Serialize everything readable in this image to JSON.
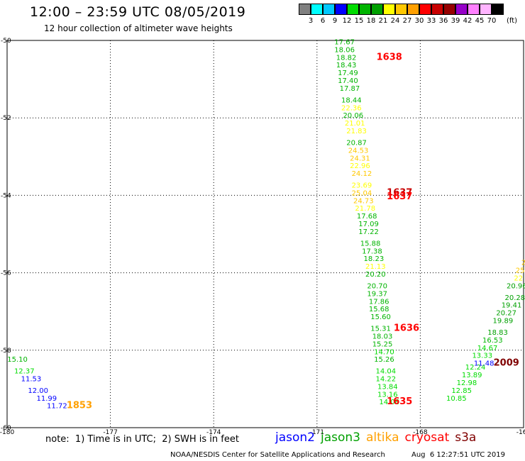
{
  "header": {
    "title": "12:00 – 23:59 UTC 08/05/2019",
    "subtitle": "12 hour collection of altimeter wave heights",
    "unit": "(ft)"
  },
  "colorbar": {
    "colors": [
      "#808080",
      "#00ffff",
      "#00c8ff",
      "#0000ff",
      "#00dc00",
      "#00b400",
      "#00a000",
      "#ffff00",
      "#ffc800",
      "#ffa000",
      "#ff0000",
      "#c80000",
      "#960000",
      "#9600c8",
      "#ff80ff",
      "#ffb4ff",
      "#000000"
    ],
    "labels": [
      "3",
      "6",
      "9",
      "12",
      "15",
      "18",
      "21",
      "24",
      "27",
      "30",
      "33",
      "36",
      "39",
      "42",
      "45",
      "70"
    ]
  },
  "footer": {
    "note": "note:  1) Time is in UTC;  2) SWH is in feet",
    "legend": [
      {
        "name": "jason2",
        "color": "#0000ff"
      },
      {
        "name": "jason3",
        "color": "#00a000"
      },
      {
        "name": "altika",
        "color": "#ffa000"
      },
      {
        "name": "cryosat",
        "color": "#ff0000"
      },
      {
        "name": "s3a",
        "color": "#800000"
      }
    ],
    "credit": "NOAA/NESDIS Center for Satellite Applications and Research",
    "timestamp": "Aug  6 12:27:51 UTC 2019"
  },
  "chart_data": {
    "type": "scatter",
    "xlim": [
      -180,
      -165
    ],
    "ylim": [
      -60,
      -50
    ],
    "xticks": [
      "-180",
      "-177",
      "-174",
      "-171",
      "-168",
      "-165"
    ],
    "yticks": [
      "-50",
      "-52",
      "-54",
      "-56",
      "-58",
      "-60"
    ],
    "grid": true,
    "series": [
      {
        "name": "jason3",
        "color": "#00a000",
        "points": [
          [
            "17.67",
            "#00b400",
            -170.2,
            -50.1
          ],
          [
            "18.06",
            "#00b400",
            -170.2,
            -50.3
          ],
          [
            "18.82",
            "#00b400",
            -170.15,
            -50.5
          ],
          [
            "18.43",
            "#00b400",
            -170.15,
            -50.7
          ],
          [
            "17.49",
            "#00b400",
            -170.1,
            -50.9
          ],
          [
            "17.40",
            "#00b400",
            -170.1,
            -51.1
          ],
          [
            "17.87",
            "#00b400",
            -170.05,
            -51.3
          ],
          [
            "18.44",
            "#00b400",
            -170.0,
            -51.6
          ],
          [
            "22.36",
            "#ffff00",
            -170.0,
            -51.8
          ],
          [
            "20.06",
            "#00b400",
            -169.95,
            -52.0
          ],
          [
            "21.01",
            "#ffff00",
            -169.9,
            -52.2
          ],
          [
            "21.83",
            "#ffff00",
            -169.85,
            -52.4
          ],
          [
            "20.87",
            "#00b400",
            -169.85,
            -52.7
          ],
          [
            "24.53",
            "#ffc800",
            -169.8,
            -52.9
          ],
          [
            "24.31",
            "#ffc800",
            -169.75,
            -53.1
          ],
          [
            "22.96",
            "#ffff00",
            -169.75,
            -53.3
          ],
          [
            "24.12",
            "#ffc800",
            -169.7,
            -53.5
          ],
          [
            "23.69",
            "#ffff00",
            -169.7,
            -53.8
          ],
          [
            "25.04",
            "#ffc800",
            -169.7,
            -54.0
          ],
          [
            "24.73",
            "#ffc800",
            -169.65,
            -54.2
          ],
          [
            "21.78",
            "#ffff00",
            -169.6,
            -54.4
          ],
          [
            "17.68",
            "#00b400",
            -169.55,
            -54.6
          ],
          [
            "17.09",
            "#00b400",
            -169.5,
            -54.8
          ],
          [
            "17.22",
            "#00b400",
            -169.5,
            -55.0
          ],
          [
            "15.88",
            "#00b400",
            -169.45,
            -55.3
          ],
          [
            "17.38",
            "#00b400",
            -169.4,
            -55.5
          ],
          [
            "18.23",
            "#00b400",
            -169.35,
            -55.7
          ],
          [
            "21.13",
            "#ffff00",
            -169.3,
            -55.9
          ],
          [
            "20.20",
            "#00b400",
            -169.3,
            -56.1
          ],
          [
            "20.70",
            "#00b400",
            -169.25,
            -56.4
          ],
          [
            "19.37",
            "#00b400",
            -169.25,
            -56.6
          ],
          [
            "17.86",
            "#00b400",
            -169.2,
            -56.8
          ],
          [
            "15.68",
            "#00b400",
            -169.2,
            -57.0
          ],
          [
            "15.60",
            "#00b400",
            -169.15,
            -57.2
          ],
          [
            "15.31",
            "#00b400",
            -169.15,
            -57.5
          ],
          [
            "18.03",
            "#00b400",
            -169.1,
            -57.7
          ],
          [
            "15.25",
            "#00b400",
            -169.1,
            -57.9
          ],
          [
            "14.70",
            "#00dc00",
            -169.05,
            -58.1
          ],
          [
            "15.26",
            "#00b400",
            -169.05,
            -58.3
          ],
          [
            "14.04",
            "#00dc00",
            -169.0,
            -58.6
          ],
          [
            "14.22",
            "#00dc00",
            -169.0,
            -58.8
          ],
          [
            "13.84",
            "#00dc00",
            -168.95,
            -59.0
          ],
          [
            "13.16",
            "#00dc00",
            -168.95,
            -59.2
          ],
          [
            "14.08",
            "#00dc00",
            -168.9,
            -59.4
          ]
        ]
      },
      {
        "name": "jason3-b",
        "color": "#00a000",
        "points": [
          [
            "2",
            "#ffc800",
            -165.0,
            -55.8
          ],
          [
            "25",
            "#ffc800",
            -165.1,
            -56.0
          ],
          [
            "22",
            "#ffff00",
            -165.15,
            -56.2
          ],
          [
            "20.96",
            "#00a000",
            -165.2,
            -56.4
          ],
          [
            "20.28",
            "#00a000",
            -165.25,
            -56.7
          ],
          [
            "19.41",
            "#00a000",
            -165.35,
            -56.9
          ],
          [
            "20.27",
            "#00a000",
            -165.5,
            -57.1
          ],
          [
            "19.89",
            "#00a000",
            -165.6,
            -57.3
          ],
          [
            "18.83",
            "#00a000",
            -165.75,
            -57.6
          ],
          [
            "16.53",
            "#00b400",
            -165.9,
            -57.8
          ],
          [
            "14.67",
            "#00dc00",
            -166.05,
            -58.0
          ],
          [
            "13.33",
            "#00dc00",
            -166.2,
            -58.2
          ],
          [
            "12.24",
            "#00dc00",
            -166.4,
            -58.5
          ],
          [
            "13.89",
            "#00dc00",
            -166.5,
            -58.7
          ],
          [
            "12.98",
            "#00dc00",
            -166.65,
            -58.9
          ],
          [
            "12.85",
            "#00dc00",
            -166.8,
            -59.1
          ],
          [
            "10.85",
            "#00dc00",
            -166.95,
            -59.3
          ]
        ]
      },
      {
        "name": "jason3-c",
        "color": "#00a000",
        "points": [
          [
            "15.10",
            "#00b400",
            -179.7,
            -58.3
          ],
          [
            "12.37",
            "#00dc00",
            -179.5,
            -58.6
          ]
        ]
      },
      {
        "name": "jason2",
        "color": "#0000ff",
        "points": [
          [
            "11.53",
            "#0000ff",
            -179.3,
            -58.8
          ],
          [
            "12.00",
            "#0000ff",
            -179.1,
            -59.1
          ],
          [
            "11.99",
            "#0000ff",
            -178.85,
            -59.3
          ],
          [
            "11.72",
            "#0000ff",
            -178.55,
            -59.5
          ],
          [
            "11.48",
            "#0000ff",
            -166.15,
            -58.4
          ]
        ]
      }
    ],
    "annotations": [
      {
        "text": "1638",
        "color": "#ff0000",
        "x": -168.9,
        "y": -50.5
      },
      {
        "text": "1637",
        "color": "#c80000",
        "x": -168.6,
        "y": -54.0
      },
      {
        "text": "1637",
        "color": "#ff0000",
        "x": -168.6,
        "y": -54.1
      },
      {
        "text": "1636",
        "color": "#ff0000",
        "x": -168.4,
        "y": -57.5
      },
      {
        "text": "1635",
        "color": "#ff0000",
        "x": -168.6,
        "y": -59.4
      },
      {
        "text": "1853",
        "color": "#ffa000",
        "x": -177.9,
        "y": -59.5
      },
      {
        "text": "2009",
        "color": "#800000",
        "x": -165.5,
        "y": -58.4
      }
    ]
  }
}
